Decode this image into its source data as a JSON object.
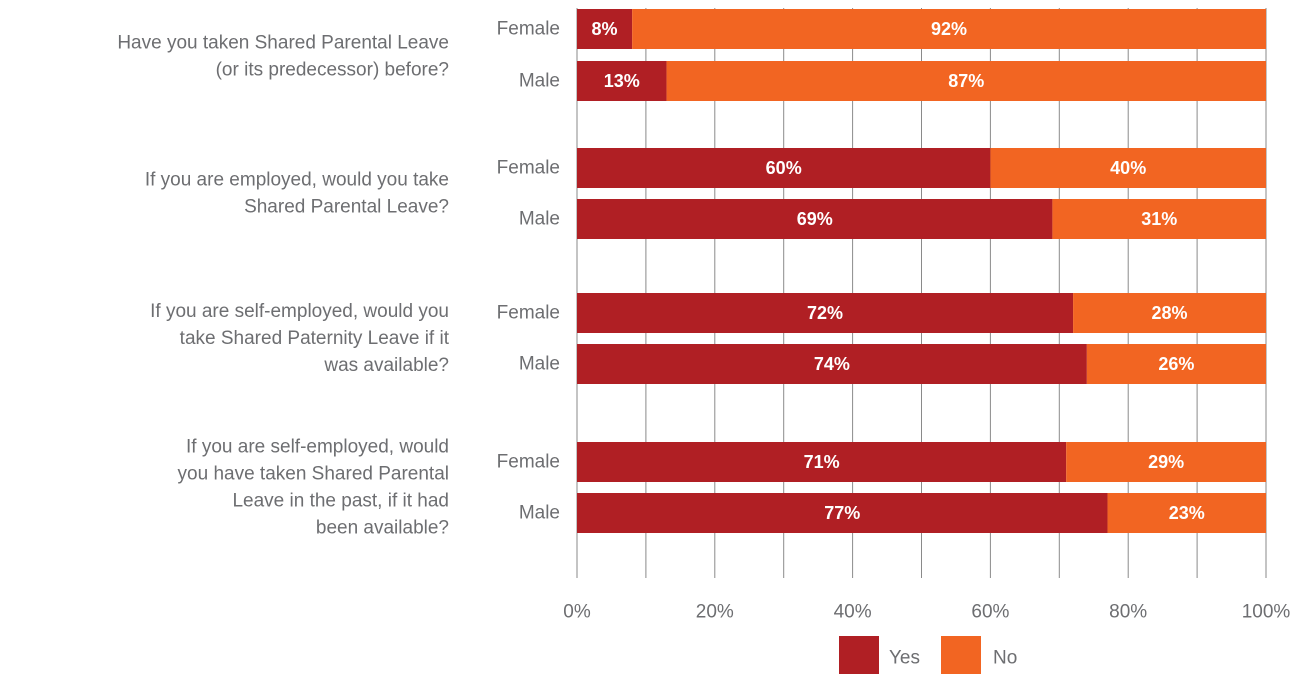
{
  "colors": {
    "yes": "#b01f24",
    "no": "#f26522",
    "grid": "#8a8a8a",
    "text": "#6d6e71"
  },
  "chart_data": {
    "type": "bar",
    "orientation": "horizontal",
    "stacked": true,
    "title": "",
    "xlabel": "",
    "ylabel": "",
    "xlim": [
      0,
      100
    ],
    "x_ticks": [
      "0%",
      "20%",
      "40%",
      "60%",
      "80%",
      "100%"
    ],
    "grid": true,
    "legend": {
      "position": "bottom",
      "entries": [
        "Yes",
        "No"
      ]
    },
    "series": [
      {
        "name": "Yes"
      },
      {
        "name": "No"
      }
    ],
    "questions": [
      {
        "lines": [
          "Have you taken Shared Parental Leave",
          "(or its predecessor) before?"
        ],
        "rows": [
          {
            "group": "Female",
            "yes": 8,
            "no": 92,
            "yes_label": "8%",
            "no_label": "92%"
          },
          {
            "group": "Male",
            "yes": 13,
            "no": 87,
            "yes_label": "13%",
            "no_label": "87%"
          }
        ]
      },
      {
        "lines": [
          "If you are employed, would you take",
          "Shared Parental Leave?"
        ],
        "rows": [
          {
            "group": "Female",
            "yes": 60,
            "no": 40,
            "yes_label": "60%",
            "no_label": "40%"
          },
          {
            "group": "Male",
            "yes": 69,
            "no": 31,
            "yes_label": "69%",
            "no_label": "31%"
          }
        ]
      },
      {
        "lines": [
          "If you are self-employed, would you",
          "take Shared Paternity Leave if it",
          "was available?"
        ],
        "rows": [
          {
            "group": "Female",
            "yes": 72,
            "no": 28,
            "yes_label": "72%",
            "no_label": "28%"
          },
          {
            "group": "Male",
            "yes": 74,
            "no": 26,
            "yes_label": "74%",
            "no_label": "26%"
          }
        ]
      },
      {
        "lines": [
          "If you are self-employed, would",
          "you have taken Shared Parental",
          "Leave in the past, if it had",
          "been available?"
        ],
        "rows": [
          {
            "group": "Female",
            "yes": 71,
            "no": 29,
            "yes_label": "71%",
            "no_label": "29%"
          },
          {
            "group": "Male",
            "yes": 77,
            "no": 23,
            "yes_label": "77%",
            "no_label": "23%"
          }
        ]
      }
    ]
  }
}
